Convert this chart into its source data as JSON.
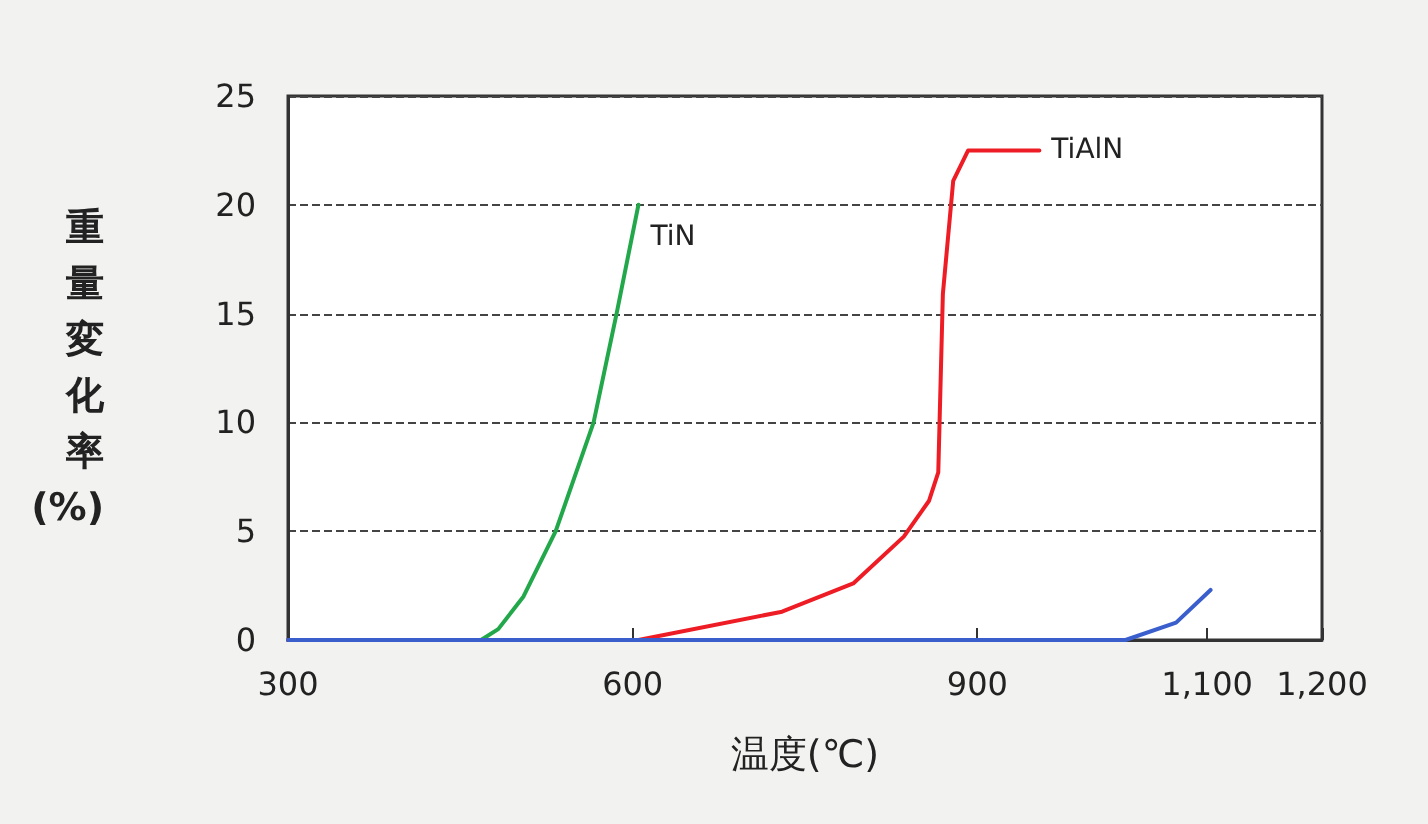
{
  "chart_data": {
    "type": "line",
    "xlabel": "温度(℃)",
    "ylabel": "重量変化率(%)",
    "xlim": [
      300,
      1200
    ],
    "xticks": [
      300,
      600,
      900,
      {
        "value": 1100,
        "label": "1,100"
      },
      {
        "value": 1200,
        "label": "1,200"
      }
    ],
    "ylim": [
      0,
      25
    ],
    "yticks": [
      0,
      5,
      10,
      15,
      20,
      25
    ],
    "grid": "y",
    "legend": false,
    "marker": "none",
    "line_style": "solid",
    "series": [
      {
        "name": "TiN",
        "color": "#22a84a",
        "x": [
          300,
          468,
          483,
          505,
          533,
          566,
          586,
          605
        ],
        "values": [
          0,
          0,
          0.5,
          2,
          5,
          10,
          15,
          20
        ]
      },
      {
        "name": "TiAlN",
        "color": "#ee1c24",
        "x": [
          300,
          605,
          730,
          792,
          836,
          858,
          866,
          870,
          879,
          892,
          954
        ],
        "values": [
          0,
          0,
          1.3,
          2.6,
          4.75,
          6.4,
          7.7,
          15.9,
          21.1,
          22.5,
          22.5
        ]
      },
      {
        "color": "#3a5fcd",
        "x": [
          300,
          1029,
          1073,
          1103
        ],
        "values": [
          0,
          0,
          0.8,
          2.3
        ]
      }
    ]
  }
}
